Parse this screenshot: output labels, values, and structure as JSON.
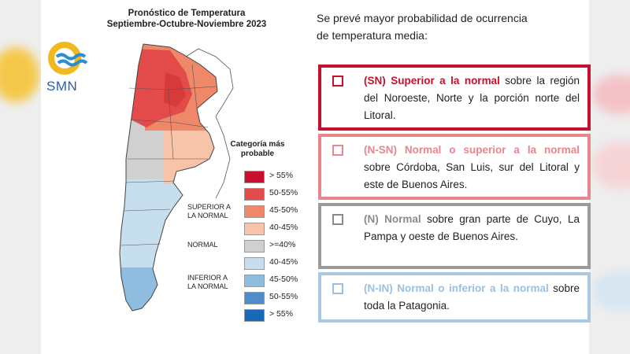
{
  "map": {
    "title_line1": "Pronóstico de Temperatura",
    "title_line2": "Septiembre-Octubre-Noviembre 2023",
    "logo_text": "SMN",
    "logo_icon": "smn-sun-waves-logo"
  },
  "legend": {
    "title_line1": "Categoría más",
    "title_line2": "probable",
    "groups": {
      "superior_line1": "SUPERIOR A",
      "superior_line2": "LA NORMAL",
      "normal": "NORMAL",
      "inferior_line1": "INFERIOR A",
      "inferior_line2": "LA NORMAL"
    },
    "items": [
      {
        "label": "> 55%",
        "color": "#c8102e"
      },
      {
        "label": "50-55%",
        "color": "#e34a4a"
      },
      {
        "label": "45-50%",
        "color": "#ef8868"
      },
      {
        "label": "40-45%",
        "color": "#f7c4aa"
      },
      {
        "label": ">=40%",
        "color": "#d0d0d0"
      },
      {
        "label": "40-45%",
        "color": "#c6deee"
      },
      {
        "label": "45-50%",
        "color": "#8fbde0"
      },
      {
        "label": "50-55%",
        "color": "#4f8cc9"
      },
      {
        "label": "> 55%",
        "color": "#1868b8"
      }
    ]
  },
  "intro": {
    "line1": "Se prevé mayor probabilidad de ocurrencia",
    "line2": "de temperatura media:"
  },
  "boxes": [
    {
      "highlight": "(SN) Superior a la normal",
      "rest": "sobre la región del Noroeste, Norte y la porción norte del Litoral.",
      "border_color": "#c8102e",
      "highlight_color": "#c8102e"
    },
    {
      "highlight": "(N-SN) Normal o superior a la normal",
      "rest": "sobre Córdoba, San Luis, sur del Litoral y este de Buenos Aires.",
      "border_color": "#e8868e",
      "highlight_color": "#e8868e"
    },
    {
      "highlight": "(N) Normal",
      "rest": "sobre gran parte de Cuyo, La Pampa y oeste de Buenos Aires.",
      "border_color": "#9a9a9a",
      "highlight_color": "#8a8a8a"
    },
    {
      "highlight": "(N-IN) Normal o inferior a la normal",
      "rest": "sobre toda la Patagonia.",
      "border_color": "#a8c8e4",
      "highlight_color": "#9cc0e0"
    }
  ]
}
